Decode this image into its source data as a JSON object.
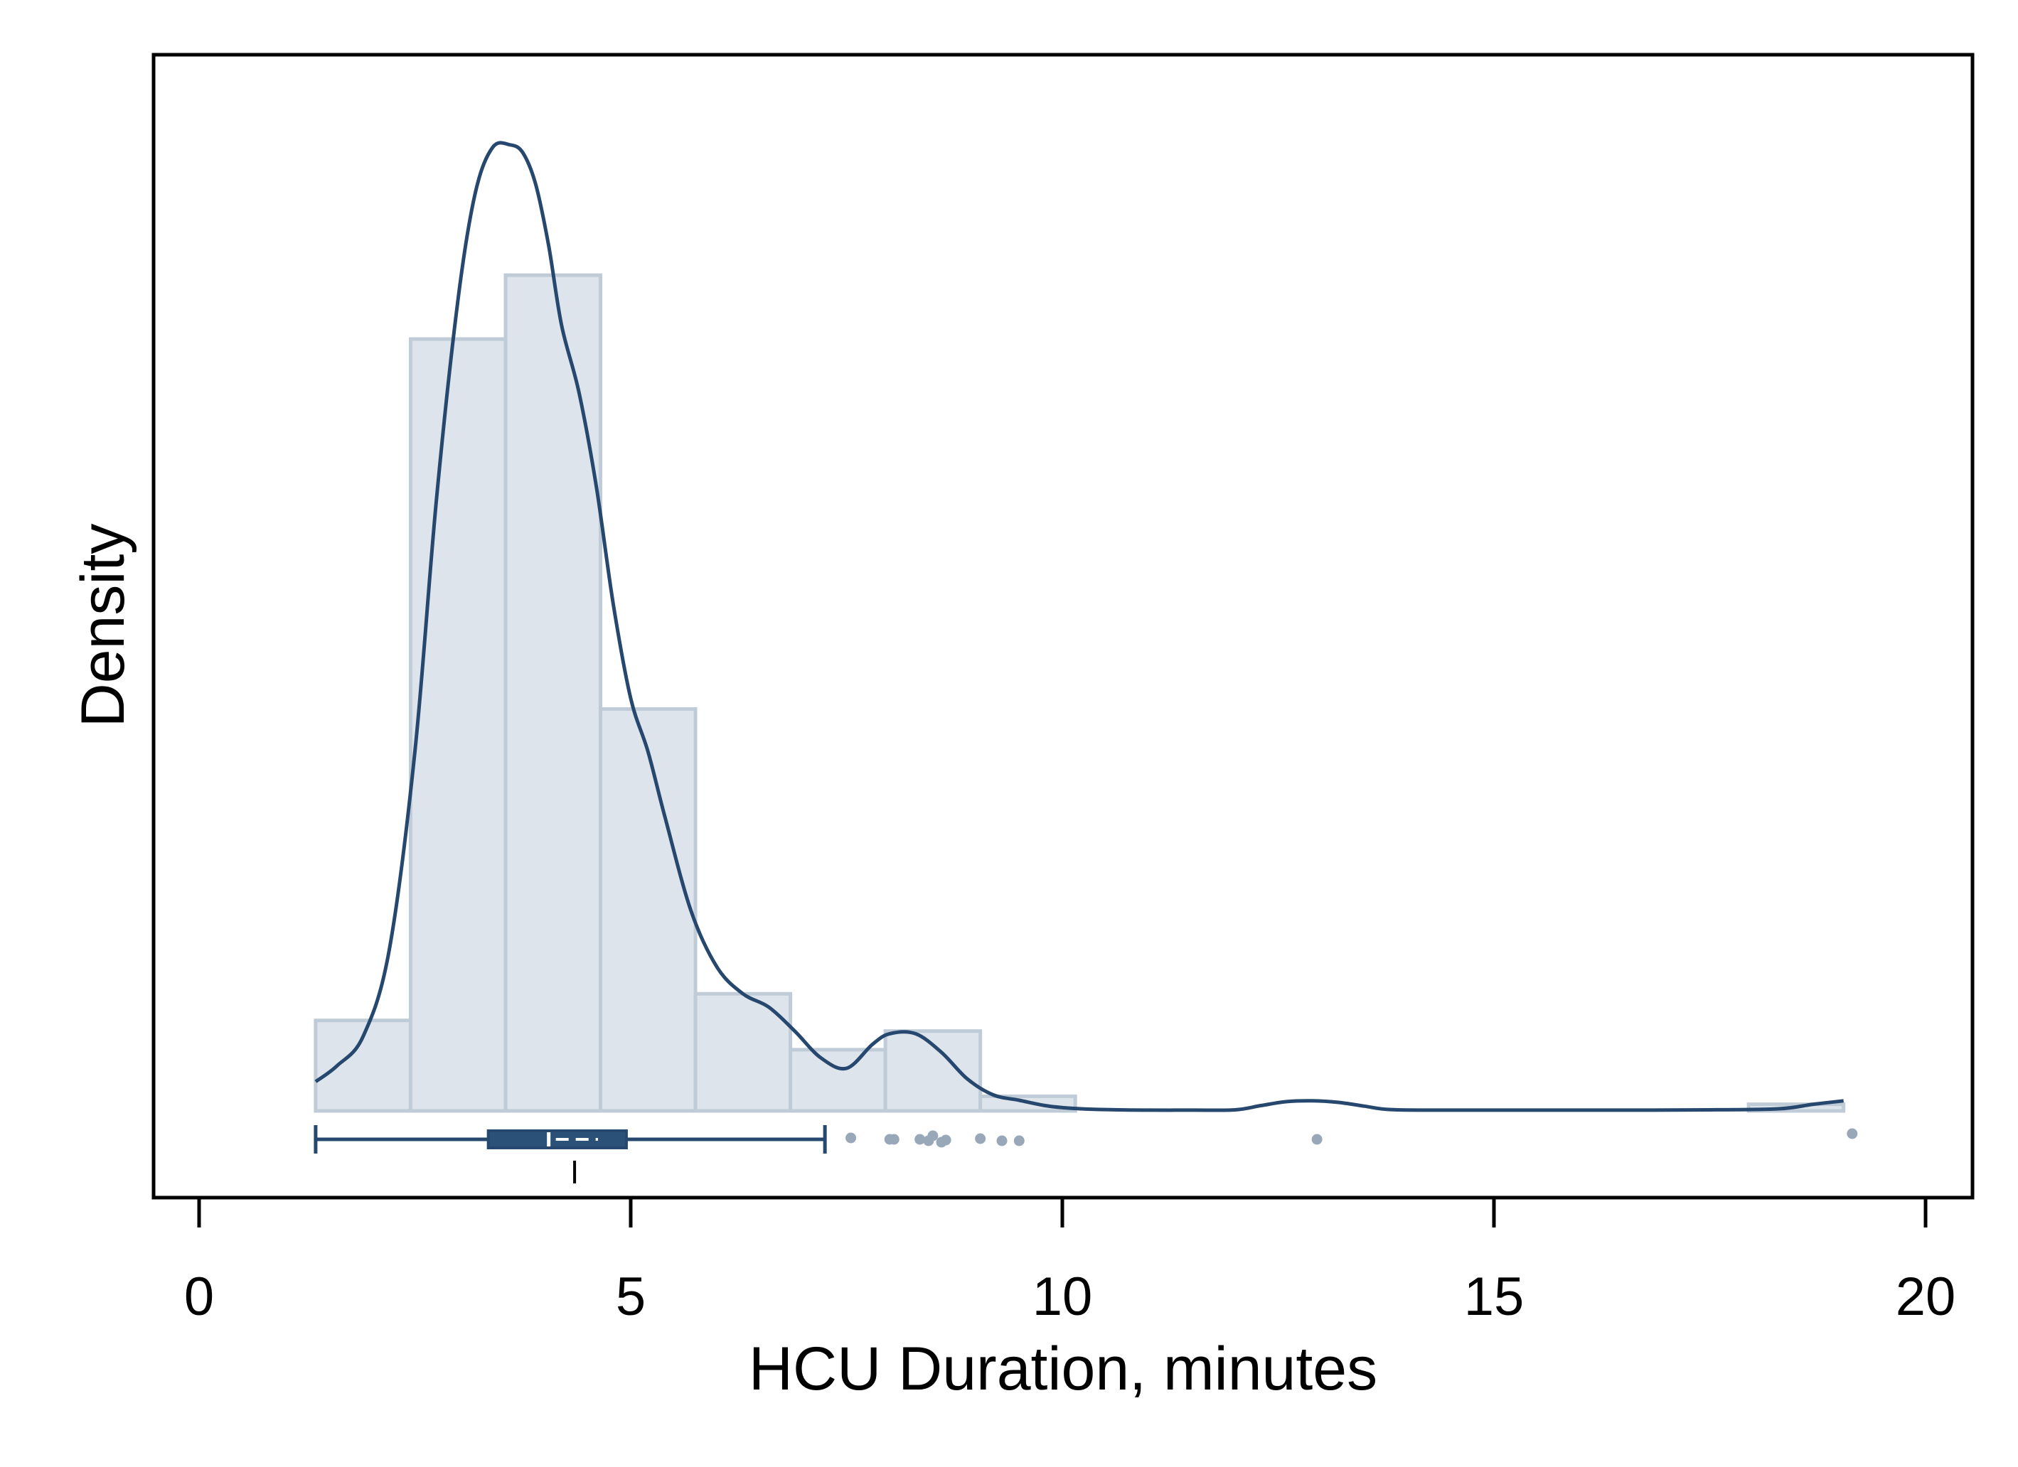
{
  "chart_data": {
    "type": "histogram",
    "title": "",
    "xlabel": "HCU Duration, minutes",
    "ylabel": "Density",
    "xlim": [
      -0.5,
      20.5
    ],
    "x_ticks": [
      0,
      5,
      10,
      15,
      20
    ],
    "x_tick_labels": [
      "0",
      "5",
      "10",
      "15",
      "20"
    ],
    "y_ticks_shown": false,
    "grid": false,
    "legend": "none",
    "density_max": 0.38,
    "histogram": {
      "bin_width": 1.1,
      "bins": [
        {
          "start": 1.35,
          "end": 2.45,
          "density": 0.034
        },
        {
          "start": 2.45,
          "end": 3.55,
          "density": 0.29
        },
        {
          "start": 3.55,
          "end": 4.65,
          "density": 0.314
        },
        {
          "start": 4.65,
          "end": 5.75,
          "density": 0.151
        },
        {
          "start": 5.75,
          "end": 6.85,
          "density": 0.044
        },
        {
          "start": 6.85,
          "end": 7.95,
          "density": 0.023
        },
        {
          "start": 7.95,
          "end": 9.05,
          "density": 0.03
        },
        {
          "start": 9.05,
          "end": 10.15,
          "density": 0.0055
        },
        {
          "start": 17.95,
          "end": 19.05,
          "density": 0.0025
        }
      ]
    },
    "kde": {
      "x": [
        1.35,
        1.6,
        1.9,
        2.2,
        2.5,
        2.75,
        3.0,
        3.2,
        3.4,
        3.6,
        3.75,
        3.9,
        4.05,
        4.2,
        4.4,
        4.6,
        4.8,
        5.0,
        5.2,
        5.4,
        5.7,
        6.0,
        6.3,
        6.6,
        6.9,
        7.2,
        7.5,
        7.8,
        8.0,
        8.3,
        8.6,
        8.9,
        9.2,
        9.5,
        9.8,
        10.1,
        10.5,
        11.0,
        11.5,
        12.0,
        12.3,
        12.6,
        12.9,
        13.2,
        13.5,
        13.8,
        14.5,
        15.5,
        16.5,
        17.5,
        18.3,
        18.7,
        19.05
      ],
      "y": [
        0.011,
        0.017,
        0.028,
        0.06,
        0.135,
        0.23,
        0.305,
        0.345,
        0.362,
        0.363,
        0.36,
        0.348,
        0.325,
        0.295,
        0.27,
        0.235,
        0.19,
        0.155,
        0.135,
        0.11,
        0.075,
        0.054,
        0.044,
        0.039,
        0.03,
        0.02,
        0.016,
        0.025,
        0.029,
        0.029,
        0.022,
        0.012,
        0.006,
        0.004,
        0.002,
        0.001,
        0.0005,
        0.0003,
        0.0003,
        0.0004,
        0.002,
        0.0035,
        0.0038,
        0.0032,
        0.0018,
        0.0005,
        0.0003,
        0.0003,
        0.0003,
        0.0004,
        0.0008,
        0.0025,
        0.0038
      ]
    },
    "boxplot": {
      "whisker_low": 1.35,
      "q1": 3.35,
      "median": 4.05,
      "mean": 4.35,
      "q3": 4.95,
      "whisker_high": 7.25,
      "outliers": [
        7.55,
        8.0,
        8.05,
        8.35,
        8.45,
        8.5,
        8.6,
        8.65,
        9.05,
        9.3,
        9.5,
        12.95,
        19.15
      ],
      "outlier_y_offsets": [
        -2,
        0,
        0,
        0,
        2,
        -5,
        4,
        1,
        -1,
        2,
        2,
        0,
        -8
      ]
    },
    "colors": {
      "bar_fill": "#dde4ec",
      "bar_edge": "#bfcbd6",
      "kde_line": "#27486e",
      "box_fill": "#2c5178",
      "box_line": "#27486e",
      "outlier": "#98a8b8",
      "axis": "#000000"
    }
  }
}
